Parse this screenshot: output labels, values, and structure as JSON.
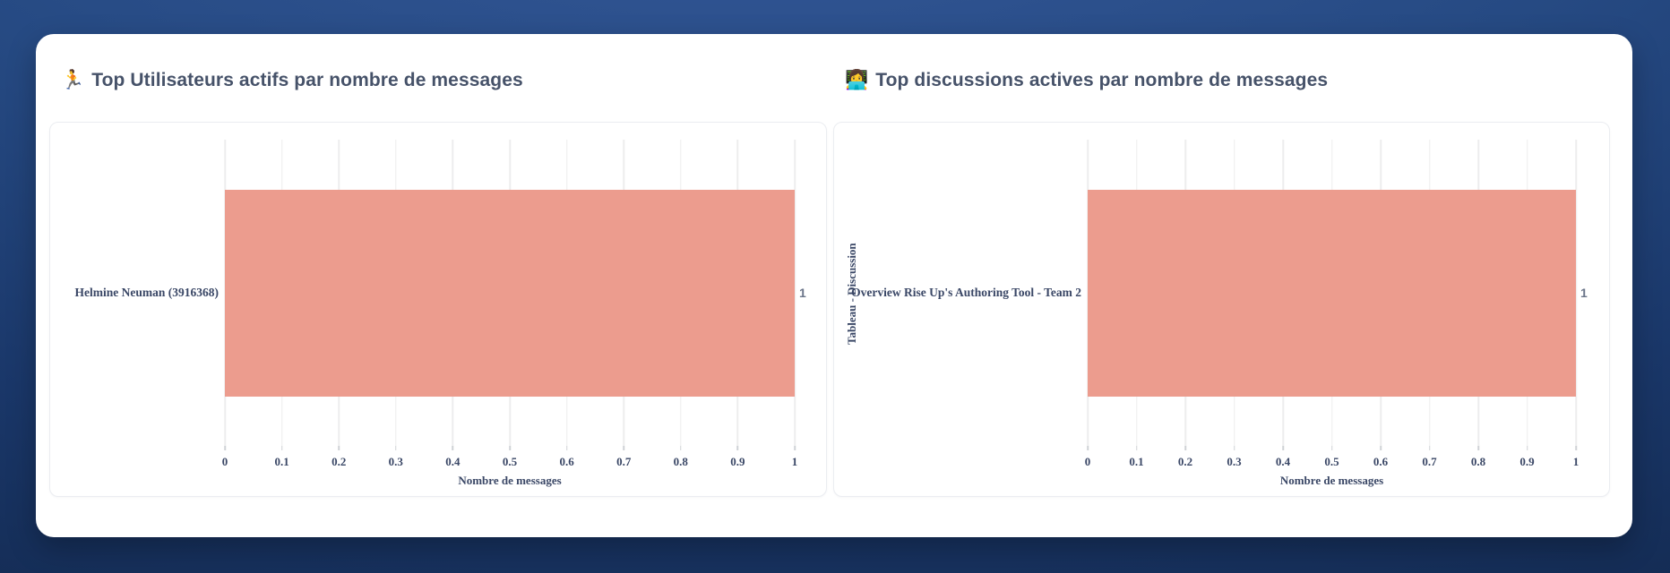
{
  "colors": {
    "background_top": "#35599a",
    "background_bottom": "#112649",
    "card": "#ffffff",
    "title_text": "#465269",
    "axis_text": "#3a4766",
    "value_text": "#6b7589",
    "gridline": "#ededee",
    "bar": "#ec9c8e"
  },
  "chart_data": [
    {
      "type": "bar",
      "orientation": "horizontal",
      "title_emoji": "🏃",
      "title": "Top Utilisateurs actifs par nombre de messages",
      "categories": [
        "Helmine Neuman (3916368)"
      ],
      "values": [
        1
      ],
      "value_labels": [
        "1"
      ],
      "xlabel": "Nombre de messages",
      "ylabel": "",
      "xlim": [
        0,
        1
      ],
      "xticks": [
        0,
        0.1,
        0.2,
        0.3,
        0.4,
        0.5,
        0.6,
        0.7,
        0.8,
        0.9,
        1
      ],
      "xtick_labels": [
        "0",
        "0.1",
        "0.2",
        "0.3",
        "0.4",
        "0.5",
        "0.6",
        "0.7",
        "0.8",
        "0.9",
        "1"
      ],
      "grid": true,
      "legend": false,
      "bar_color": "#ec9c8e"
    },
    {
      "type": "bar",
      "orientation": "horizontal",
      "title_emoji": "👩‍💻",
      "title": "Top discussions actives par nombre de messages",
      "categories": [
        "Overview Rise Up's Authoring Tool - Team 2"
      ],
      "values": [
        1
      ],
      "value_labels": [
        "1"
      ],
      "xlabel": "Nombre de messages",
      "ylabel": "Tableau - Discussion",
      "xlim": [
        0,
        1
      ],
      "xticks": [
        0,
        0.1,
        0.2,
        0.3,
        0.4,
        0.5,
        0.6,
        0.7,
        0.8,
        0.9,
        1
      ],
      "xtick_labels": [
        "0",
        "0.1",
        "0.2",
        "0.3",
        "0.4",
        "0.5",
        "0.6",
        "0.7",
        "0.8",
        "0.9",
        "1"
      ],
      "grid": true,
      "legend": false,
      "bar_color": "#ec9c8e"
    }
  ]
}
